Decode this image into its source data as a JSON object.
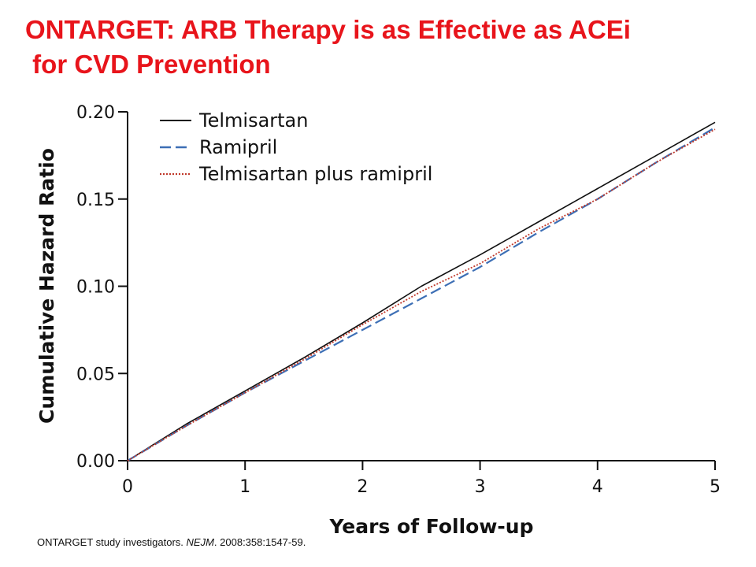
{
  "slide": {
    "title_line1": "ONTARGET: ARB Therapy is as Effective as ACEi",
    "title_line2": " for CVD Prevention",
    "citation_prefix": "ONTARGET study investigators. ",
    "citation_journal": "NEJM",
    "citation_suffix": ". 2008:358:1547-59."
  },
  "colors": {
    "title": "#e8141b",
    "telmisartan": "#111111",
    "ramipril": "#3d6fb5",
    "combination": "#c0392b"
  },
  "chart_data": {
    "type": "line",
    "title": "",
    "xlabel": "Years of Follow-up",
    "ylabel": "Cumulative Hazard Ratio",
    "xlim": [
      0,
      5
    ],
    "ylim": [
      0,
      0.2
    ],
    "xticks": [
      0,
      1,
      2,
      3,
      4,
      5
    ],
    "xtick_labels": [
      "0",
      "1",
      "2",
      "3",
      "4",
      "5"
    ],
    "yticks": [
      0,
      0.05,
      0.1,
      0.15,
      0.2
    ],
    "ytick_labels": [
      "0.00",
      "0.05",
      "0.10",
      "0.15",
      "0.20"
    ],
    "grid": false,
    "legend_position": "top-left",
    "x": [
      0,
      0.5,
      1.0,
      1.5,
      2.0,
      2.5,
      3.0,
      3.5,
      4.0,
      4.5,
      5.0
    ],
    "series": [
      {
        "name": "Telmisartan",
        "color": "#111111",
        "dash": "solid",
        "values": [
          0.0,
          0.021,
          0.04,
          0.059,
          0.079,
          0.1,
          0.118,
          0.137,
          0.156,
          0.175,
          0.194
        ]
      },
      {
        "name": "Ramipril",
        "color": "#3d6fb5",
        "dash": "dashed",
        "values": [
          0.0,
          0.02,
          0.039,
          0.057,
          0.075,
          0.093,
          0.111,
          0.131,
          0.15,
          0.171,
          0.191
        ]
      },
      {
        "name": "Telmisartan plus ramipril",
        "color": "#c0392b",
        "dash": "dotted",
        "values": [
          0.0,
          0.02,
          0.039,
          0.058,
          0.078,
          0.097,
          0.113,
          0.133,
          0.15,
          0.171,
          0.19
        ]
      }
    ]
  }
}
